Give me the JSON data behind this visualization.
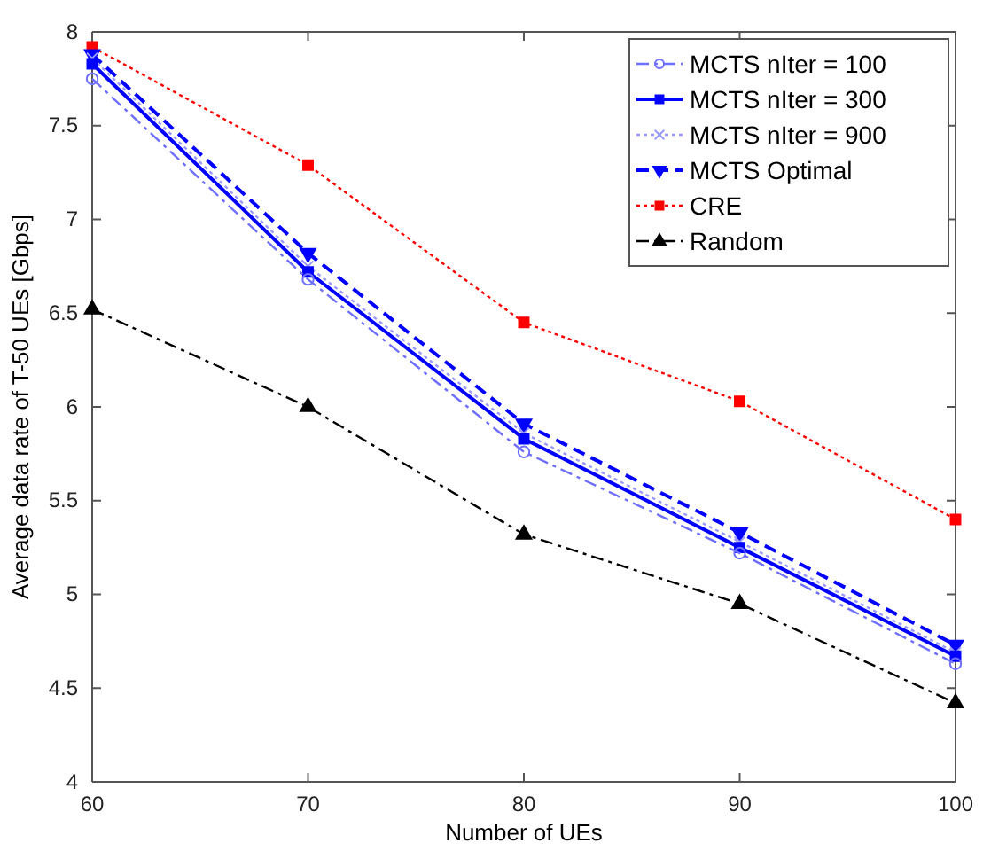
{
  "chart_data": {
    "type": "line",
    "xlabel": "Number of UEs",
    "ylabel": "Average data rate of T-50 UEs [Gbps]",
    "x": [
      60,
      70,
      80,
      90,
      100
    ],
    "xlim": [
      60,
      100
    ],
    "xticks": [
      60,
      70,
      80,
      90,
      100
    ],
    "ylim": [
      4,
      8
    ],
    "yticks": [
      4,
      4.5,
      5,
      5.5,
      6,
      6.5,
      7,
      7.5,
      8
    ],
    "grid": false,
    "legend": "top right",
    "series": [
      {
        "name": "MCTS nIter = 100",
        "color": "#6f6fff",
        "marker": "circle",
        "line_style": "dashdot",
        "values": [
          7.75,
          6.68,
          5.76,
          5.22,
          4.63
        ]
      },
      {
        "name": "MCTS nIter = 300",
        "color": "#0000ff",
        "marker": "square",
        "line_style": "solid",
        "values": [
          7.83,
          6.72,
          5.83,
          5.25,
          4.67
        ]
      },
      {
        "name": "MCTS nIter = 900",
        "color": "#9999ff",
        "marker": "cross",
        "line_style": "dotted",
        "values": [
          7.86,
          6.75,
          5.86,
          5.28,
          4.69
        ]
      },
      {
        "name": "MCTS Optimal",
        "color": "#0000ff",
        "marker": "triangle-down",
        "line_style": "dashed",
        "values": [
          7.88,
          6.82,
          5.91,
          5.33,
          4.73
        ]
      },
      {
        "name": "CRE",
        "color": "#ff0000",
        "marker": "square",
        "line_style": "dotted",
        "values": [
          7.92,
          7.29,
          6.45,
          6.03,
          5.4
        ]
      },
      {
        "name": "Random",
        "color": "#000000",
        "marker": "triangle",
        "line_style": "dashdot",
        "values": [
          6.52,
          6.0,
          5.32,
          4.95,
          4.42
        ]
      }
    ]
  }
}
